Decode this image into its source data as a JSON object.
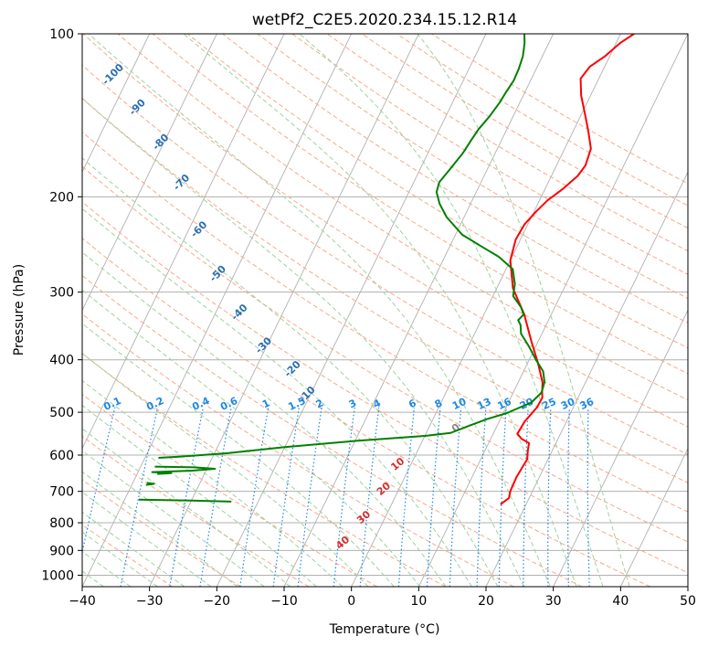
{
  "chart_data": {
    "type": "skew-t",
    "title": "wetPf2_C2E5.2020.234.15.12.R14",
    "xlabel": "Temperature (°C)",
    "ylabel": "Pressure (hPa)",
    "xlim": [
      -40,
      50
    ],
    "ylim": [
      1050,
      100
    ],
    "y_scale": "log",
    "x_ticks": [
      "−40",
      "−30",
      "−20",
      "−10",
      "0",
      "10",
      "20",
      "30",
      "40",
      "50"
    ],
    "x_tick_values": [
      -40,
      -30,
      -20,
      -10,
      0,
      10,
      20,
      30,
      40,
      50
    ],
    "y_ticks": [
      "100",
      "200",
      "300",
      "400",
      "500",
      "600",
      "700",
      "800",
      "900",
      "1000"
    ],
    "y_tick_values": [
      100,
      200,
      300,
      400,
      500,
      600,
      700,
      800,
      900,
      1000
    ],
    "grid": true,
    "mixing_ratio_labels": [
      "0.1",
      "0.2",
      "0.4",
      "0.6",
      "1",
      "1.5",
      "2",
      "3",
      "4",
      "6",
      "8",
      "10",
      "13",
      "16",
      "20",
      "25",
      "30",
      "36"
    ],
    "mixing_ratio_values": [
      0.1,
      0.2,
      0.4,
      0.6,
      1,
      1.5,
      2,
      3,
      4,
      6,
      8,
      10,
      13,
      16,
      20,
      25,
      30,
      36
    ],
    "moist_adiabat_labels": [
      "-100",
      "-90",
      "-80",
      "-70",
      "-60",
      "-50",
      "-40",
      "-30",
      "-20",
      "-10"
    ],
    "dry_adiabat_labels": [
      "0",
      "10",
      "20",
      "30",
      "40"
    ],
    "colors": {
      "temperature": "#ff0000",
      "dewpoint": "#008000",
      "mixing_ratio": "#1e88e5",
      "moist_label": "#2a6fb0",
      "dry_adiabat": "#f7a98c",
      "moist_adiabat": "#9fd29f",
      "dry_label": "#d32f2f",
      "isotherm": "#b0b0b0"
    },
    "series": [
      {
        "key": "temperature",
        "points": [
          [
            16.2,
            740
          ],
          [
            17.0,
            720
          ],
          [
            16.7,
            700
          ],
          [
            16.6,
            660
          ],
          [
            16.9,
            610
          ],
          [
            16.4,
            590
          ],
          [
            16.0,
            570
          ],
          [
            14.6,
            560
          ],
          [
            13.6,
            548
          ],
          [
            13.8,
            520
          ],
          [
            14.6,
            490
          ],
          [
            14.7,
            470
          ],
          [
            14.3,
            460
          ],
          [
            13.6,
            440
          ],
          [
            11.5,
            405
          ],
          [
            9.0,
            370
          ],
          [
            6.0,
            330
          ],
          [
            2.4,
            295
          ],
          [
            0.0,
            262
          ],
          [
            -0.7,
            240
          ],
          [
            -0.5,
            225
          ],
          [
            0.3,
            213
          ],
          [
            1.2,
            203
          ],
          [
            2.7,
            193
          ],
          [
            3.9,
            183
          ],
          [
            4.3,
            175
          ],
          [
            3.9,
            163
          ],
          [
            2.2,
            151
          ],
          [
            0.4,
            140
          ],
          [
            -1.4,
            130
          ],
          [
            -2.7,
            121
          ],
          [
            -2.2,
            115
          ],
          [
            -0.7,
            110
          ],
          [
            0.6,
            104
          ],
          [
            2.0,
            100
          ]
        ]
      },
      {
        "key": "dewpoint",
        "points": [
          [
            -38,
            607
          ],
          [
            -35,
            604
          ],
          [
            -28,
            595
          ],
          [
            -20,
            580
          ],
          [
            -10,
            565
          ],
          [
            0,
            553
          ],
          [
            3.6,
            546
          ],
          [
            5.8,
            530
          ],
          [
            8,
            515
          ],
          [
            10.5,
            502
          ],
          [
            13.4,
            480
          ],
          [
            14.2,
            460
          ],
          [
            13.9,
            440
          ],
          [
            12.9,
            420
          ],
          [
            11.0,
            400
          ],
          [
            9.0,
            378
          ],
          [
            6.9,
            358
          ],
          [
            6.2,
            345
          ],
          [
            5.5,
            338
          ],
          [
            5.9,
            330
          ],
          [
            5.0,
            320
          ],
          [
            3.0,
            305
          ],
          [
            2.4,
            290
          ],
          [
            1.0,
            272
          ],
          [
            -2.0,
            258
          ],
          [
            -5.0,
            248
          ],
          [
            -9.0,
            235
          ],
          [
            -12.6,
            218
          ],
          [
            -14.6,
            206
          ],
          [
            -15.9,
            196
          ],
          [
            -16.2,
            188
          ],
          [
            -15.5,
            177
          ],
          [
            -14.8,
            166
          ],
          [
            -14.5,
            157
          ],
          [
            -14.2,
            150
          ],
          [
            -13.5,
            142
          ],
          [
            -13.0,
            134
          ],
          [
            -12.8,
            128
          ],
          [
            -12.5,
            122
          ],
          [
            -12.6,
            116
          ],
          [
            -12.9,
            110
          ],
          [
            -13.6,
            104
          ],
          [
            -14.3,
            100
          ]
        ]
      },
      {
        "key": "dewpoint-low",
        "points": [
          [
            -37.9,
            630
          ],
          [
            -32.0,
            632
          ],
          [
            -28.8,
            636
          ],
          [
            -32.0,
            641
          ],
          [
            -37.9,
            645
          ],
          [
            -35.0,
            648
          ],
          [
            -37.0,
            650
          ]
        ]
      },
      {
        "key": "dewpoint-low-2",
        "points": [
          [
            -37.9,
            675
          ],
          [
            -36.8,
            678
          ],
          [
            -37.9,
            681
          ]
        ]
      },
      {
        "key": "dewpoint-low-3",
        "points": [
          [
            -37.9,
            725
          ],
          [
            -30.0,
            728
          ],
          [
            -24.0,
            731
          ]
        ]
      }
    ]
  }
}
